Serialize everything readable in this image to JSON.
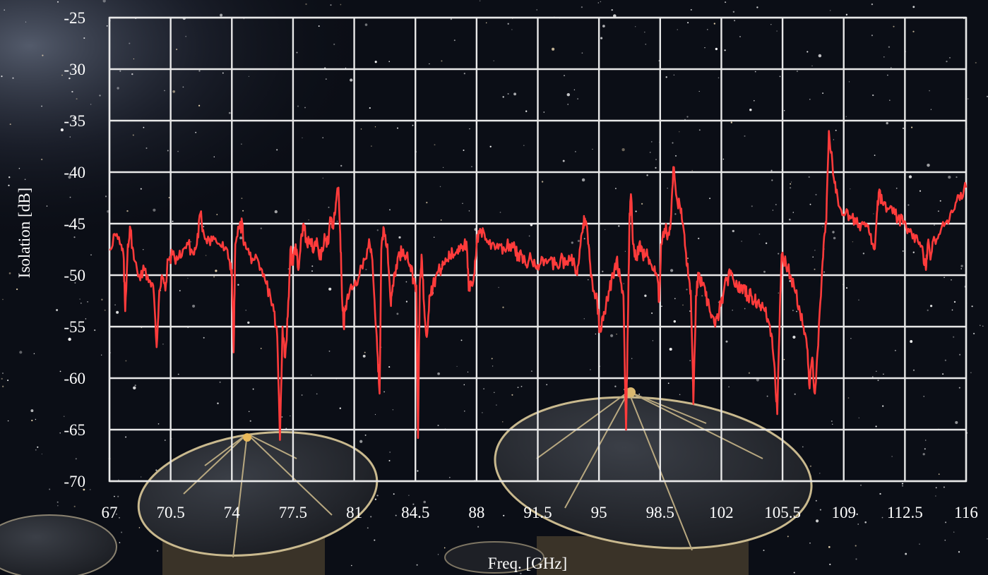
{
  "chart_data": {
    "type": "line",
    "title": "",
    "xlabel": "Freq. [GHz]",
    "ylabel": "Isolation [dB]",
    "xlim": [
      67,
      116
    ],
    "ylim": [
      -70,
      -25
    ],
    "x_ticks": [
      "67",
      "70.5",
      "74",
      "77.5",
      "81",
      "84.5",
      "88",
      "91.5",
      "95",
      "98.5",
      "102",
      "105.5",
      "109",
      "112.5",
      "116"
    ],
    "y_ticks": [
      "-25",
      "-30",
      "-35",
      "-40",
      "-45",
      "-50",
      "-55",
      "-60",
      "-65",
      "-70"
    ],
    "grid": true,
    "series": [
      {
        "color": "#ff3b3b",
        "points": [
          [
            67.0,
            -47.5
          ],
          [
            67.3,
            -46.0
          ],
          [
            67.6,
            -47.0
          ],
          [
            67.8,
            -48.0
          ],
          [
            67.9,
            -53.5
          ],
          [
            68.05,
            -47.0
          ],
          [
            68.2,
            -45.5
          ],
          [
            68.4,
            -48.5
          ],
          [
            68.7,
            -50.0
          ],
          [
            69.0,
            -49.5
          ],
          [
            69.3,
            -50.5
          ],
          [
            69.5,
            -51.0
          ],
          [
            69.7,
            -57.0
          ],
          [
            69.85,
            -51.5
          ],
          [
            70.0,
            -50.0
          ],
          [
            70.2,
            -51.5
          ],
          [
            70.35,
            -48.5
          ],
          [
            70.6,
            -48.0
          ],
          [
            70.9,
            -48.5
          ],
          [
            71.2,
            -47.5
          ],
          [
            71.5,
            -47.0
          ],
          [
            71.8,
            -48.0
          ],
          [
            72.0,
            -47.0
          ],
          [
            72.2,
            -44.0
          ],
          [
            72.4,
            -46.0
          ],
          [
            72.7,
            -46.5
          ],
          [
            73.0,
            -46.5
          ],
          [
            73.3,
            -47.0
          ],
          [
            73.6,
            -47.5
          ],
          [
            73.85,
            -48.5
          ],
          [
            74.0,
            -49.5
          ],
          [
            74.1,
            -57.5
          ],
          [
            74.2,
            -47.0
          ],
          [
            74.4,
            -45.5
          ],
          [
            74.6,
            -45.0
          ],
          [
            74.7,
            -47.0
          ],
          [
            75.0,
            -48.0
          ],
          [
            75.3,
            -48.5
          ],
          [
            75.6,
            -49.5
          ],
          [
            75.9,
            -50.5
          ],
          [
            76.2,
            -52.0
          ],
          [
            76.4,
            -53.5
          ],
          [
            76.6,
            -56.0
          ],
          [
            76.75,
            -66.0
          ],
          [
            76.9,
            -55.0
          ],
          [
            77.05,
            -58.0
          ],
          [
            77.2,
            -54.0
          ],
          [
            77.35,
            -47.5
          ],
          [
            77.5,
            -49.0
          ],
          [
            77.65,
            -47.0
          ],
          [
            77.8,
            -49.5
          ],
          [
            77.95,
            -46.5
          ],
          [
            78.1,
            -45.0
          ],
          [
            78.3,
            -47.0
          ],
          [
            78.5,
            -46.5
          ],
          [
            78.7,
            -47.5
          ],
          [
            78.9,
            -47.0
          ],
          [
            79.1,
            -48.5
          ],
          [
            79.3,
            -46.0
          ],
          [
            79.5,
            -47.0
          ],
          [
            79.65,
            -44.5
          ],
          [
            79.8,
            -45.5
          ],
          [
            79.95,
            -43.0
          ],
          [
            80.1,
            -41.5
          ],
          [
            80.2,
            -46.0
          ],
          [
            80.3,
            -52.0
          ],
          [
            80.4,
            -55.0
          ],
          [
            80.5,
            -53.0
          ],
          [
            80.7,
            -52.0
          ],
          [
            81.0,
            -51.0
          ],
          [
            81.3,
            -50.0
          ],
          [
            81.6,
            -48.5
          ],
          [
            81.85,
            -46.5
          ],
          [
            82.0,
            -48.0
          ],
          [
            82.2,
            -54.0
          ],
          [
            82.35,
            -58.0
          ],
          [
            82.45,
            -61.5
          ],
          [
            82.55,
            -47.5
          ],
          [
            82.7,
            -45.5
          ],
          [
            82.9,
            -47.0
          ],
          [
            83.1,
            -53.0
          ],
          [
            83.2,
            -51.0
          ],
          [
            83.4,
            -49.0
          ],
          [
            83.6,
            -48.0
          ],
          [
            83.8,
            -47.5
          ],
          [
            84.0,
            -48.0
          ],
          [
            84.2,
            -49.0
          ],
          [
            84.4,
            -50.5
          ],
          [
            84.55,
            -51.0
          ],
          [
            84.65,
            -65.8
          ],
          [
            84.75,
            -51.0
          ],
          [
            84.85,
            -48.0
          ],
          [
            85.0,
            -53.0
          ],
          [
            85.15,
            -56.0
          ],
          [
            85.3,
            -52.0
          ],
          [
            85.5,
            -51.0
          ],
          [
            85.7,
            -50.0
          ],
          [
            85.9,
            -49.5
          ],
          [
            86.1,
            -49.0
          ],
          [
            86.3,
            -48.5
          ],
          [
            86.5,
            -48.0
          ],
          [
            86.7,
            -48.0
          ],
          [
            86.9,
            -47.5
          ],
          [
            87.1,
            -47.0
          ],
          [
            87.3,
            -47.0
          ],
          [
            87.45,
            -47.5
          ],
          [
            87.55,
            -51.5
          ],
          [
            87.7,
            -51.0
          ],
          [
            87.85,
            -50.0
          ],
          [
            88.0,
            -47.0
          ],
          [
            88.2,
            -45.5
          ],
          [
            88.45,
            -46.0
          ],
          [
            88.7,
            -47.0
          ],
          [
            89.0,
            -47.0
          ],
          [
            89.3,
            -47.0
          ],
          [
            89.6,
            -47.5
          ],
          [
            89.9,
            -47.0
          ],
          [
            90.2,
            -47.5
          ],
          [
            90.4,
            -48.5
          ],
          [
            90.6,
            -48.0
          ],
          [
            90.8,
            -49.0
          ],
          [
            91.0,
            -48.5
          ],
          [
            91.3,
            -48.5
          ],
          [
            91.6,
            -49.0
          ],
          [
            91.9,
            -48.5
          ],
          [
            92.2,
            -48.5
          ],
          [
            92.5,
            -49.0
          ],
          [
            92.8,
            -48.5
          ],
          [
            93.1,
            -49.0
          ],
          [
            93.4,
            -48.5
          ],
          [
            93.6,
            -49.0
          ],
          [
            93.75,
            -50.0
          ],
          [
            93.9,
            -47.5
          ],
          [
            94.1,
            -45.0
          ],
          [
            94.2,
            -44.5
          ],
          [
            94.35,
            -46.0
          ],
          [
            94.5,
            -49.0
          ],
          [
            94.7,
            -51.5
          ],
          [
            94.9,
            -52.5
          ],
          [
            95.05,
            -55.5
          ],
          [
            95.2,
            -54.0
          ],
          [
            95.4,
            -53.0
          ],
          [
            95.6,
            -51.5
          ],
          [
            95.8,
            -50.0
          ],
          [
            96.0,
            -48.5
          ],
          [
            96.2,
            -50.0
          ],
          [
            96.4,
            -52.0
          ],
          [
            96.55,
            -65.0
          ],
          [
            96.65,
            -55.0
          ],
          [
            96.75,
            -44.0
          ],
          [
            96.85,
            -42.5
          ],
          [
            96.95,
            -47.0
          ],
          [
            97.1,
            -48.5
          ],
          [
            97.3,
            -47.0
          ],
          [
            97.5,
            -48.0
          ],
          [
            97.7,
            -48.0
          ],
          [
            97.9,
            -48.5
          ],
          [
            98.1,
            -49.5
          ],
          [
            98.3,
            -50.0
          ],
          [
            98.45,
            -52.5
          ],
          [
            98.55,
            -47.0
          ],
          [
            98.75,
            -45.5
          ],
          [
            98.95,
            -46.0
          ],
          [
            99.1,
            -45.0
          ],
          [
            99.25,
            -39.5
          ],
          [
            99.45,
            -42.5
          ],
          [
            99.65,
            -43.5
          ],
          [
            99.8,
            -45.0
          ],
          [
            99.95,
            -47.5
          ],
          [
            100.1,
            -50.0
          ],
          [
            100.25,
            -51.5
          ],
          [
            100.4,
            -62.5
          ],
          [
            100.55,
            -52.0
          ],
          [
            100.7,
            -50.0
          ],
          [
            100.9,
            -51.0
          ],
          [
            101.1,
            -52.0
          ],
          [
            101.3,
            -53.0
          ],
          [
            101.5,
            -54.0
          ],
          [
            101.65,
            -55.0
          ],
          [
            101.8,
            -54.0
          ],
          [
            101.95,
            -53.0
          ],
          [
            102.1,
            -52.0
          ],
          [
            102.3,
            -50.5
          ],
          [
            102.5,
            -50.0
          ],
          [
            102.7,
            -50.5
          ],
          [
            102.9,
            -51.0
          ],
          [
            103.1,
            -51.5
          ],
          [
            103.3,
            -51.0
          ],
          [
            103.5,
            -52.0
          ],
          [
            103.7,
            -52.0
          ],
          [
            103.9,
            -52.5
          ],
          [
            104.1,
            -52.5
          ],
          [
            104.3,
            -53.0
          ],
          [
            104.5,
            -53.5
          ],
          [
            104.7,
            -54.5
          ],
          [
            104.9,
            -56.0
          ],
          [
            105.05,
            -59.0
          ],
          [
            105.2,
            -63.5
          ],
          [
            105.35,
            -53.0
          ],
          [
            105.45,
            -48.0
          ],
          [
            105.7,
            -49.0
          ],
          [
            105.95,
            -50.0
          ],
          [
            106.2,
            -51.5
          ],
          [
            106.45,
            -53.0
          ],
          [
            106.7,
            -55.0
          ],
          [
            106.9,
            -57.0
          ],
          [
            107.05,
            -61.0
          ],
          [
            107.2,
            -58.0
          ],
          [
            107.35,
            -61.5
          ],
          [
            107.5,
            -57.5
          ],
          [
            107.7,
            -52.0
          ],
          [
            107.85,
            -47.0
          ],
          [
            108.0,
            -45.0
          ],
          [
            108.15,
            -36.0
          ],
          [
            108.35,
            -39.0
          ],
          [
            108.55,
            -42.0
          ],
          [
            108.8,
            -43.5
          ],
          [
            109.1,
            -44.0
          ],
          [
            109.4,
            -44.5
          ],
          [
            109.7,
            -45.0
          ],
          [
            110.0,
            -45.0
          ],
          [
            110.3,
            -45.0
          ],
          [
            110.55,
            -46.0
          ],
          [
            110.75,
            -47.5
          ],
          [
            110.9,
            -44.0
          ],
          [
            111.0,
            -42.0
          ],
          [
            111.2,
            -43.0
          ],
          [
            111.5,
            -43.5
          ],
          [
            111.8,
            -44.0
          ],
          [
            112.1,
            -44.5
          ],
          [
            112.4,
            -45.0
          ],
          [
            112.7,
            -45.5
          ],
          [
            113.0,
            -46.0
          ],
          [
            113.3,
            -47.0
          ],
          [
            113.55,
            -48.0
          ],
          [
            113.7,
            -49.5
          ],
          [
            113.8,
            -47.0
          ],
          [
            114.0,
            -48.0
          ],
          [
            114.2,
            -46.5
          ],
          [
            114.5,
            -46.0
          ],
          [
            114.8,
            -45.0
          ],
          [
            115.1,
            -44.0
          ],
          [
            115.4,
            -43.0
          ],
          [
            115.7,
            -42.0
          ],
          [
            116.0,
            -41.5
          ]
        ]
      }
    ]
  }
}
